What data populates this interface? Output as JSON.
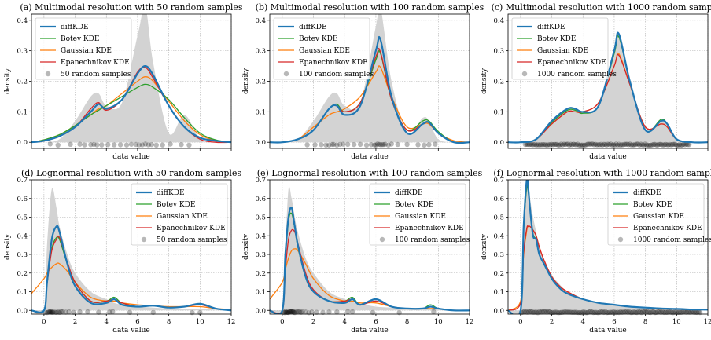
{
  "colors": {
    "diffKDE": "#1f77b4",
    "Botev KDE": "#2ca02c",
    "Gaussian KDE": "#ff7f0e",
    "Epanechnikov KDE": "#d62728",
    "true_density": "#d3d3d3",
    "samples": "#000000"
  },
  "chart_data": [
    {
      "type": "line",
      "title": "(a) Multimodal resolution with 50 random samples",
      "xlabel": "data value",
      "ylabel": "density",
      "xlim": [
        -0.8,
        12
      ],
      "ylim": [
        -0.02,
        0.42
      ],
      "xticks": [],
      "yticks": [
        0.0,
        0.1,
        0.2,
        0.3,
        0.4
      ],
      "grid": true,
      "legend": "top-left",
      "true_density_label": "",
      "sample_label": "50 random samples",
      "x": [
        -0.8,
        0,
        1,
        2,
        3,
        3.5,
        4,
        5,
        6,
        6.5,
        7,
        8,
        9,
        10,
        11,
        12
      ],
      "true_density": [
        0.0,
        0.0,
        0.01,
        0.07,
        0.15,
        0.16,
        0.12,
        0.13,
        0.35,
        0.44,
        0.26,
        0.03,
        0.09,
        0.01,
        0.0,
        0.0
      ],
      "series": [
        {
          "name": "diffKDE",
          "values": [
            0.0,
            0.005,
            0.02,
            0.05,
            0.1,
            0.125,
            0.11,
            0.14,
            0.225,
            0.25,
            0.22,
            0.12,
            0.05,
            0.015,
            0.005,
            0.0
          ]
        },
        {
          "name": "Botev KDE",
          "values": [
            0.0,
            0.008,
            0.025,
            0.055,
            0.09,
            0.105,
            0.12,
            0.15,
            0.18,
            0.19,
            0.18,
            0.14,
            0.08,
            0.03,
            0.008,
            0.0
          ]
        },
        {
          "name": "Gaussian KDE",
          "values": [
            0.0,
            0.008,
            0.025,
            0.055,
            0.09,
            0.11,
            0.12,
            0.16,
            0.2,
            0.215,
            0.2,
            0.135,
            0.07,
            0.025,
            0.006,
            0.0
          ]
        },
        {
          "name": "Epanechnikov KDE",
          "values": [
            0.0,
            0.004,
            0.02,
            0.05,
            0.11,
            0.13,
            0.105,
            0.14,
            0.23,
            0.245,
            0.21,
            0.12,
            0.05,
            0.01,
            0.0,
            0.0
          ]
        }
      ],
      "samples": [
        0.4,
        0.9,
        1.7,
        2.3,
        2.6,
        3.0,
        3.2,
        3.4,
        3.7,
        4.1,
        4.5,
        4.9,
        5.3,
        5.6,
        5.9,
        6.1,
        6.3,
        6.5,
        6.7,
        6.9,
        7.2,
        7.6,
        8.1,
        8.8,
        9.3
      ]
    },
    {
      "type": "line",
      "title": "(b) Multimodal resolution with 100 random samples",
      "xlabel": "data value",
      "ylabel": "density",
      "xlim": [
        -0.8,
        12
      ],
      "ylim": [
        -0.02,
        0.42
      ],
      "xticks": [],
      "yticks": [
        0.0,
        0.1,
        0.2,
        0.3,
        0.4
      ],
      "grid": true,
      "legend": "top-left",
      "sample_label": "100 random samples",
      "x": [
        -0.8,
        0,
        1,
        2,
        3,
        3.5,
        4,
        5,
        6,
        6.3,
        7,
        8,
        9,
        9.4,
        10,
        11,
        12
      ],
      "true_density": [
        0.0,
        0.0,
        0.01,
        0.07,
        0.15,
        0.16,
        0.12,
        0.13,
        0.38,
        0.44,
        0.2,
        0.03,
        0.08,
        0.07,
        0.01,
        0.0,
        0.0
      ],
      "series": [
        {
          "name": "diffKDE",
          "values": [
            0.0,
            0.0,
            0.01,
            0.04,
            0.11,
            0.12,
            0.09,
            0.12,
            0.3,
            0.335,
            0.15,
            0.03,
            0.06,
            0.065,
            0.03,
            0.0,
            0.0
          ]
        },
        {
          "name": "Botev KDE",
          "values": [
            0.0,
            0.0,
            0.01,
            0.04,
            0.11,
            0.125,
            0.1,
            0.13,
            0.27,
            0.29,
            0.14,
            0.04,
            0.07,
            0.07,
            0.035,
            0.0,
            0.0
          ]
        },
        {
          "name": "Gaussian KDE",
          "values": [
            0.0,
            0.0,
            0.01,
            0.05,
            0.09,
            0.1,
            0.11,
            0.15,
            0.23,
            0.245,
            0.15,
            0.05,
            0.06,
            0.06,
            0.03,
            0.005,
            0.0
          ]
        },
        {
          "name": "Epanechnikov KDE",
          "values": [
            0.0,
            0.0,
            0.01,
            0.04,
            0.11,
            0.12,
            0.1,
            0.13,
            0.28,
            0.295,
            0.14,
            0.04,
            0.06,
            0.065,
            0.03,
            0.0,
            0.0
          ]
        }
      ],
      "samples": [
        1.6,
        2.1,
        2.5,
        2.8,
        3.0,
        3.2,
        3.3,
        3.5,
        3.7,
        3.9,
        4.2,
        4.6,
        5.0,
        5.4,
        5.7,
        5.9,
        6.0,
        6.1,
        6.2,
        6.3,
        6.4,
        6.5,
        6.6,
        6.8,
        7.0,
        7.4,
        8.0,
        8.7,
        9.1,
        9.4,
        9.8
      ]
    },
    {
      "type": "line",
      "title": "(c) Multimodal resolution with 1000 random samples",
      "xlabel": "data value",
      "ylabel": "density",
      "xlim": [
        -0.8,
        12
      ],
      "ylim": [
        -0.02,
        0.42
      ],
      "xticks": [],
      "yticks": [
        0.0,
        0.1,
        0.2,
        0.3,
        0.4
      ],
      "grid": true,
      "legend": "top-left",
      "sample_label": "1000 random samples",
      "x": [
        -0.8,
        0,
        1,
        2,
        3,
        3.5,
        4,
        5,
        6,
        6.3,
        7,
        8,
        9,
        9.4,
        10,
        11,
        12
      ],
      "true_density": [
        0.0,
        0.0,
        0.01,
        0.07,
        0.11,
        0.11,
        0.1,
        0.12,
        0.3,
        0.355,
        0.2,
        0.04,
        0.07,
        0.06,
        0.01,
        0.0,
        0.0
      ],
      "series": [
        {
          "name": "diffKDE",
          "values": [
            0.0,
            0.0,
            0.01,
            0.07,
            0.11,
            0.11,
            0.1,
            0.12,
            0.3,
            0.355,
            0.2,
            0.04,
            0.07,
            0.06,
            0.01,
            0.0,
            0.0
          ]
        },
        {
          "name": "Botev KDE",
          "values": [
            0.0,
            0.0,
            0.01,
            0.065,
            0.105,
            0.105,
            0.095,
            0.12,
            0.29,
            0.345,
            0.2,
            0.04,
            0.075,
            0.06,
            0.01,
            0.0,
            0.0
          ]
        },
        {
          "name": "Gaussian KDE",
          "values": [
            0.0,
            0.0,
            0.01,
            0.06,
            0.1,
            0.1,
            0.1,
            0.13,
            0.25,
            0.29,
            0.19,
            0.05,
            0.06,
            0.05,
            0.01,
            0.0,
            0.0
          ]
        },
        {
          "name": "Epanechnikov KDE",
          "values": [
            0.0,
            0.0,
            0.01,
            0.06,
            0.1,
            0.1,
            0.1,
            0.13,
            0.25,
            0.285,
            0.19,
            0.05,
            0.06,
            0.05,
            0.01,
            0.0,
            0.0
          ]
        }
      ],
      "samples_range": [
        0.3,
        10.8
      ],
      "samples_count": 1000
    },
    {
      "type": "line",
      "title": "(d) Lognormal resolution with 50 random samples",
      "xlabel": "data value",
      "ylabel": "density",
      "xlim": [
        -0.8,
        12
      ],
      "ylim": [
        -0.02,
        0.7
      ],
      "xticks": [
        0,
        2,
        4,
        6,
        8,
        10,
        12
      ],
      "yticks": [
        0.0,
        0.1,
        0.2,
        0.3,
        0.4,
        0.5,
        0.6,
        0.7
      ],
      "grid": true,
      "legend": "top-right",
      "sample_label": "50 random samples",
      "x": [
        -0.8,
        0,
        0.2,
        0.5,
        0.8,
        1.0,
        1.5,
        2,
        3,
        4,
        4.5,
        5,
        6,
        7,
        8,
        9,
        10,
        11,
        12
      ],
      "true_density": [
        0.0,
        0.0,
        0.35,
        0.65,
        0.55,
        0.45,
        0.3,
        0.2,
        0.1,
        0.06,
        0.04,
        0.03,
        0.02,
        0.015,
        0.01,
        0.008,
        0.006,
        0.004,
        0.003
      ],
      "series": [
        {
          "name": "diffKDE",
          "values": [
            0.0,
            0.0,
            0.15,
            0.38,
            0.45,
            0.42,
            0.25,
            0.13,
            0.04,
            0.04,
            0.06,
            0.03,
            0.02,
            0.025,
            0.015,
            0.02,
            0.035,
            0.01,
            0.0
          ]
        },
        {
          "name": "Botev KDE",
          "values": [
            0.0,
            0.0,
            0.15,
            0.33,
            0.39,
            0.38,
            0.25,
            0.15,
            0.05,
            0.05,
            0.07,
            0.04,
            0.02,
            0.025,
            0.015,
            0.02,
            0.035,
            0.01,
            0.0
          ]
        },
        {
          "name": "Gaussian KDE",
          "values": [
            0.09,
            0.17,
            0.2,
            0.23,
            0.25,
            0.25,
            0.21,
            0.15,
            0.07,
            0.05,
            0.05,
            0.04,
            0.03,
            0.025,
            0.02,
            0.02,
            0.02,
            0.01,
            0.005
          ]
        },
        {
          "name": "Epanechnikov KDE",
          "values": [
            0.0,
            0.0,
            0.14,
            0.32,
            0.38,
            0.39,
            0.26,
            0.15,
            0.05,
            0.05,
            0.06,
            0.04,
            0.02,
            0.025,
            0.015,
            0.02,
            0.03,
            0.01,
            0.0
          ]
        }
      ],
      "samples": [
        0.1,
        0.2,
        0.3,
        0.35,
        0.4,
        0.45,
        0.5,
        0.55,
        0.6,
        0.7,
        0.8,
        0.9,
        1.0,
        1.1,
        1.2,
        1.4,
        1.6,
        1.9,
        2.3,
        2.8,
        3.5,
        4.2,
        4.4,
        5.5,
        7.0,
        9.5,
        10.0
      ]
    },
    {
      "type": "line",
      "title": "(e) Lognormal resolution with 100 random samples",
      "xlabel": "data value",
      "ylabel": "density",
      "xlim": [
        -0.8,
        12
      ],
      "ylim": [
        -0.02,
        0.7
      ],
      "xticks": [
        0,
        2,
        4,
        6,
        8,
        10,
        12
      ],
      "yticks": [
        0.0,
        0.1,
        0.2,
        0.3,
        0.4,
        0.5,
        0.6,
        0.7
      ],
      "grid": true,
      "legend": "top-right",
      "sample_label": "100 random samples",
      "x": [
        -0.8,
        0,
        0.2,
        0.4,
        0.6,
        0.8,
        1.0,
        1.5,
        2,
        3,
        4,
        4.5,
        5,
        6,
        7,
        8,
        9,
        9.5,
        10,
        11,
        12
      ],
      "true_density": [
        0.0,
        0.0,
        0.35,
        0.65,
        0.6,
        0.5,
        0.42,
        0.28,
        0.2,
        0.1,
        0.06,
        0.045,
        0.035,
        0.02,
        0.015,
        0.01,
        0.008,
        0.006,
        0.005,
        0.004,
        0.003
      ],
      "series": [
        {
          "name": "diffKDE",
          "values": [
            0.0,
            0.0,
            0.3,
            0.5,
            0.55,
            0.45,
            0.35,
            0.18,
            0.1,
            0.05,
            0.04,
            0.06,
            0.03,
            0.06,
            0.02,
            0.01,
            0.01,
            0.02,
            0.01,
            0.0,
            0.0
          ]
        },
        {
          "name": "Botev KDE",
          "values": [
            0.0,
            0.0,
            0.28,
            0.48,
            0.52,
            0.44,
            0.34,
            0.18,
            0.1,
            0.05,
            0.05,
            0.07,
            0.03,
            0.06,
            0.02,
            0.01,
            0.01,
            0.03,
            0.01,
            0.0,
            0.0
          ]
        },
        {
          "name": "Gaussian KDE",
          "values": [
            0.06,
            0.15,
            0.22,
            0.28,
            0.32,
            0.33,
            0.32,
            0.25,
            0.17,
            0.08,
            0.05,
            0.05,
            0.04,
            0.04,
            0.02,
            0.01,
            0.01,
            0.01,
            0.01,
            0.0,
            0.0
          ]
        },
        {
          "name": "Epanechnikov KDE",
          "values": [
            0.0,
            0.0,
            0.22,
            0.38,
            0.43,
            0.42,
            0.36,
            0.2,
            0.11,
            0.05,
            0.05,
            0.06,
            0.03,
            0.05,
            0.02,
            0.01,
            0.01,
            0.02,
            0.01,
            0.0,
            0.0
          ]
        }
      ],
      "samples": [
        0.1,
        0.15,
        0.2,
        0.25,
        0.3,
        0.35,
        0.4,
        0.45,
        0.5,
        0.55,
        0.6,
        0.65,
        0.7,
        0.75,
        0.8,
        0.9,
        1.0,
        1.1,
        1.2,
        1.3,
        1.5,
        1.7,
        1.9,
        2.2,
        2.6,
        3.0,
        3.5,
        4.2,
        4.5,
        5.8,
        7.5,
        9.7
      ]
    },
    {
      "type": "line",
      "title": "(f) Lognormal resolution with 1000 random samples",
      "xlabel": "data value",
      "ylabel": "density",
      "xlim": [
        -0.8,
        12
      ],
      "ylim": [
        -0.02,
        0.7
      ],
      "xticks": [
        0,
        2,
        4,
        6,
        8,
        10,
        12
      ],
      "yticks": [
        0.0,
        0.1,
        0.2,
        0.3,
        0.4,
        0.5,
        0.6,
        0.7
      ],
      "grid": true,
      "legend": "top-right",
      "sample_label": "1000 random samples",
      "x": [
        -0.8,
        0,
        0.2,
        0.4,
        0.5,
        0.6,
        0.8,
        1.0,
        1.2,
        1.5,
        2,
        2.5,
        3,
        4,
        5,
        6,
        7,
        8,
        9,
        10,
        11,
        12
      ],
      "true_density": [
        0.0,
        0.0,
        0.45,
        0.65,
        0.64,
        0.6,
        0.5,
        0.42,
        0.35,
        0.27,
        0.19,
        0.14,
        0.1,
        0.06,
        0.04,
        0.025,
        0.018,
        0.012,
        0.009,
        0.006,
        0.005,
        0.004
      ],
      "series": [
        {
          "name": "diffKDE",
          "values": [
            0.0,
            0.0,
            0.45,
            0.7,
            0.65,
            0.55,
            0.4,
            0.38,
            0.3,
            0.25,
            0.17,
            0.12,
            0.09,
            0.06,
            0.04,
            0.03,
            0.02,
            0.015,
            0.01,
            0.008,
            0.005,
            0.004
          ]
        },
        {
          "name": "Botev KDE",
          "values": [
            0.0,
            0.0,
            0.43,
            0.66,
            0.63,
            0.55,
            0.41,
            0.38,
            0.3,
            0.25,
            0.17,
            0.12,
            0.09,
            0.06,
            0.04,
            0.03,
            0.02,
            0.015,
            0.01,
            0.008,
            0.005,
            0.004
          ]
        },
        {
          "name": "Gaussian KDE",
          "values": [
            0.0,
            0.05,
            0.3,
            0.43,
            0.45,
            0.45,
            0.43,
            0.4,
            0.34,
            0.27,
            0.18,
            0.13,
            0.1,
            0.06,
            0.04,
            0.03,
            0.02,
            0.015,
            0.01,
            0.008,
            0.005,
            0.004
          ]
        },
        {
          "name": "Epanechnikov KDE",
          "values": [
            0.0,
            0.04,
            0.31,
            0.44,
            0.45,
            0.45,
            0.43,
            0.4,
            0.34,
            0.27,
            0.18,
            0.13,
            0.1,
            0.06,
            0.04,
            0.03,
            0.02,
            0.015,
            0.01,
            0.008,
            0.005,
            0.004
          ]
        }
      ],
      "samples_range": [
        0.05,
        11.5
      ],
      "samples_count": 1000
    }
  ]
}
